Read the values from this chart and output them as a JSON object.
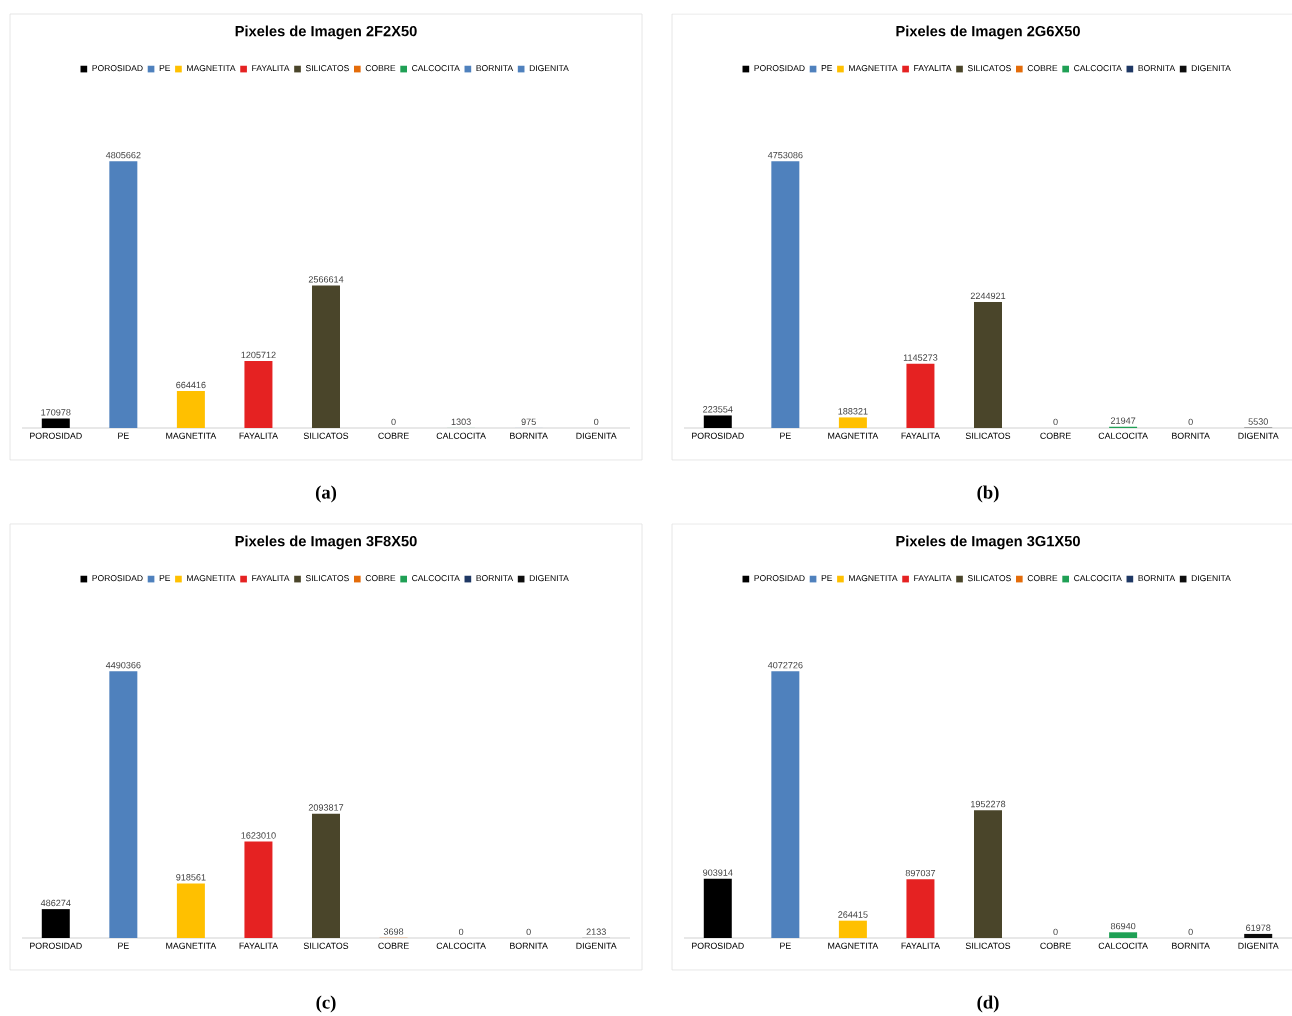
{
  "chart_data": [
    {
      "type": "bar",
      "title": "Pixeles de Imagen 2F2X50",
      "categories": [
        "POROSIDAD",
        "PE",
        "MAGNETITA",
        "FAYALITA",
        "SILICATOS",
        "COBRE",
        "CALCOCITA",
        "BORNITA",
        "DIGENITA"
      ],
      "data_labels": true,
      "legend": "top",
      "annotations": [
        "(a)"
      ],
      "series": [
        {
          "name": "POROSIDAD",
          "color": "#000000",
          "values": [
            170978,
            null,
            null,
            null,
            null,
            null,
            null,
            null,
            null
          ]
        },
        {
          "name": "PE",
          "color": "#4f81bd",
          "values": [
            null,
            4805662,
            null,
            null,
            null,
            null,
            null,
            null,
            null
          ]
        },
        {
          "name": "MAGNETITA",
          "color": "#ffc000",
          "values": [
            null,
            null,
            664416,
            null,
            null,
            null,
            null,
            null,
            null
          ]
        },
        {
          "name": "FAYALITA",
          "color": "#e52222",
          "values": [
            null,
            null,
            null,
            1205712,
            null,
            null,
            null,
            null,
            null
          ]
        },
        {
          "name": "SILICATOS",
          "color": "#4a452a",
          "values": [
            null,
            null,
            null,
            null,
            2566614,
            null,
            null,
            null,
            null
          ]
        },
        {
          "name": "COBRE",
          "color": "#e46c0a",
          "values": [
            null,
            null,
            null,
            null,
            null,
            0,
            null,
            null,
            null
          ]
        },
        {
          "name": "CALCOCITA",
          "color": "#1fa055",
          "values": [
            null,
            null,
            null,
            null,
            null,
            null,
            1303,
            null,
            null
          ]
        },
        {
          "name": "BORNITA",
          "color": "#4f81bd",
          "values": [
            null,
            null,
            null,
            null,
            null,
            null,
            null,
            975,
            null
          ]
        },
        {
          "name": "DIGENITA",
          "color": "#4f81bd",
          "values": [
            null,
            null,
            null,
            null,
            null,
            null,
            null,
            null,
            0
          ]
        }
      ]
    },
    {
      "type": "bar",
      "title": "Pixeles de Imagen 2G6X50",
      "categories": [
        "POROSIDAD",
        "PE",
        "MAGNETITA",
        "FAYALITA",
        "SILICATOS",
        "COBRE",
        "CALCOCITA",
        "BORNITA",
        "DIGENITA"
      ],
      "data_labels": true,
      "legend": "top",
      "annotations": [
        "(b)"
      ],
      "series": [
        {
          "name": "POROSIDAD",
          "color": "#000000",
          "values": [
            223554,
            null,
            null,
            null,
            null,
            null,
            null,
            null,
            null
          ]
        },
        {
          "name": "PE",
          "color": "#4f81bd",
          "values": [
            null,
            4753086,
            null,
            null,
            null,
            null,
            null,
            null,
            null
          ]
        },
        {
          "name": "MAGNETITA",
          "color": "#ffc000",
          "values": [
            null,
            null,
            188321,
            null,
            null,
            null,
            null,
            null,
            null
          ]
        },
        {
          "name": "FAYALITA",
          "color": "#e52222",
          "values": [
            null,
            null,
            null,
            1145273,
            null,
            null,
            null,
            null,
            null
          ]
        },
        {
          "name": "SILICATOS",
          "color": "#4a452a",
          "values": [
            null,
            null,
            null,
            null,
            2244921,
            null,
            null,
            null,
            null
          ]
        },
        {
          "name": "COBRE",
          "color": "#e46c0a",
          "values": [
            null,
            null,
            null,
            null,
            null,
            0,
            null,
            null,
            null
          ]
        },
        {
          "name": "CALCOCITA",
          "color": "#1fa055",
          "values": [
            null,
            null,
            null,
            null,
            null,
            null,
            21947,
            null,
            null
          ]
        },
        {
          "name": "BORNITA",
          "color": "#1f3864",
          "values": [
            null,
            null,
            null,
            null,
            null,
            null,
            null,
            0,
            null
          ]
        },
        {
          "name": "DIGENITA",
          "color": "#0d0d0d",
          "values": [
            null,
            null,
            null,
            null,
            null,
            null,
            null,
            null,
            5530
          ]
        }
      ]
    },
    {
      "type": "bar",
      "title": "Pixeles de Imagen 3F8X50",
      "categories": [
        "POROSIDAD",
        "PE",
        "MAGNETITA",
        "FAYALITA",
        "SILICATOS",
        "COBRE",
        "CALCOCITA",
        "BORNITA",
        "DIGENITA"
      ],
      "data_labels": true,
      "legend": "top",
      "annotations": [
        "(c)"
      ],
      "series": [
        {
          "name": "POROSIDAD",
          "color": "#000000",
          "values": [
            486274,
            null,
            null,
            null,
            null,
            null,
            null,
            null,
            null
          ]
        },
        {
          "name": "PE",
          "color": "#4f81bd",
          "values": [
            null,
            4490366,
            null,
            null,
            null,
            null,
            null,
            null,
            null
          ]
        },
        {
          "name": "MAGNETITA",
          "color": "#ffc000",
          "values": [
            null,
            null,
            918561,
            null,
            null,
            null,
            null,
            null,
            null
          ]
        },
        {
          "name": "FAYALITA",
          "color": "#e52222",
          "values": [
            null,
            null,
            null,
            1623010,
            null,
            null,
            null,
            null,
            null
          ]
        },
        {
          "name": "SILICATOS",
          "color": "#4a452a",
          "values": [
            null,
            null,
            null,
            null,
            2093817,
            null,
            null,
            null,
            null
          ]
        },
        {
          "name": "COBRE",
          "color": "#e46c0a",
          "values": [
            null,
            null,
            null,
            null,
            null,
            3698,
            null,
            null,
            null
          ]
        },
        {
          "name": "CALCOCITA",
          "color": "#1fa055",
          "values": [
            null,
            null,
            null,
            null,
            null,
            null,
            0,
            null,
            null
          ]
        },
        {
          "name": "BORNITA",
          "color": "#1f3864",
          "values": [
            null,
            null,
            null,
            null,
            null,
            null,
            null,
            0,
            null
          ]
        },
        {
          "name": "DIGENITA",
          "color": "#0d0d0d",
          "values": [
            null,
            null,
            null,
            null,
            null,
            null,
            null,
            null,
            2133
          ]
        }
      ]
    },
    {
      "type": "bar",
      "title": "Pixeles de Imagen 3G1X50",
      "categories": [
        "POROSIDAD",
        "PE",
        "MAGNETITA",
        "FAYALITA",
        "SILICATOS",
        "COBRE",
        "CALCOCITA",
        "BORNITA",
        "DIGENITA"
      ],
      "data_labels": true,
      "legend": "top",
      "annotations": [
        "(d)"
      ],
      "series": [
        {
          "name": "POROSIDAD",
          "color": "#000000",
          "values": [
            903914,
            null,
            null,
            null,
            null,
            null,
            null,
            null,
            null
          ]
        },
        {
          "name": "PE",
          "color": "#4f81bd",
          "values": [
            null,
            4072726,
            null,
            null,
            null,
            null,
            null,
            null,
            null
          ]
        },
        {
          "name": "MAGNETITA",
          "color": "#ffc000",
          "values": [
            null,
            null,
            264415,
            null,
            null,
            null,
            null,
            null,
            null
          ]
        },
        {
          "name": "FAYALITA",
          "color": "#e52222",
          "values": [
            null,
            null,
            null,
            897037,
            null,
            null,
            null,
            null,
            null
          ]
        },
        {
          "name": "SILICATOS",
          "color": "#4a452a",
          "values": [
            null,
            null,
            null,
            null,
            1952278,
            null,
            null,
            null,
            null
          ]
        },
        {
          "name": "COBRE",
          "color": "#e46c0a",
          "values": [
            null,
            null,
            null,
            null,
            null,
            0,
            null,
            null,
            null
          ]
        },
        {
          "name": "CALCOCITA",
          "color": "#1fa055",
          "values": [
            null,
            null,
            null,
            null,
            null,
            null,
            86940,
            null,
            null
          ]
        },
        {
          "name": "BORNITA",
          "color": "#1f3864",
          "values": [
            null,
            null,
            null,
            null,
            null,
            null,
            null,
            0,
            null
          ]
        },
        {
          "name": "DIGENITA",
          "color": "#0d0d0d",
          "values": [
            null,
            null,
            null,
            null,
            null,
            null,
            null,
            null,
            61978
          ]
        }
      ]
    }
  ]
}
